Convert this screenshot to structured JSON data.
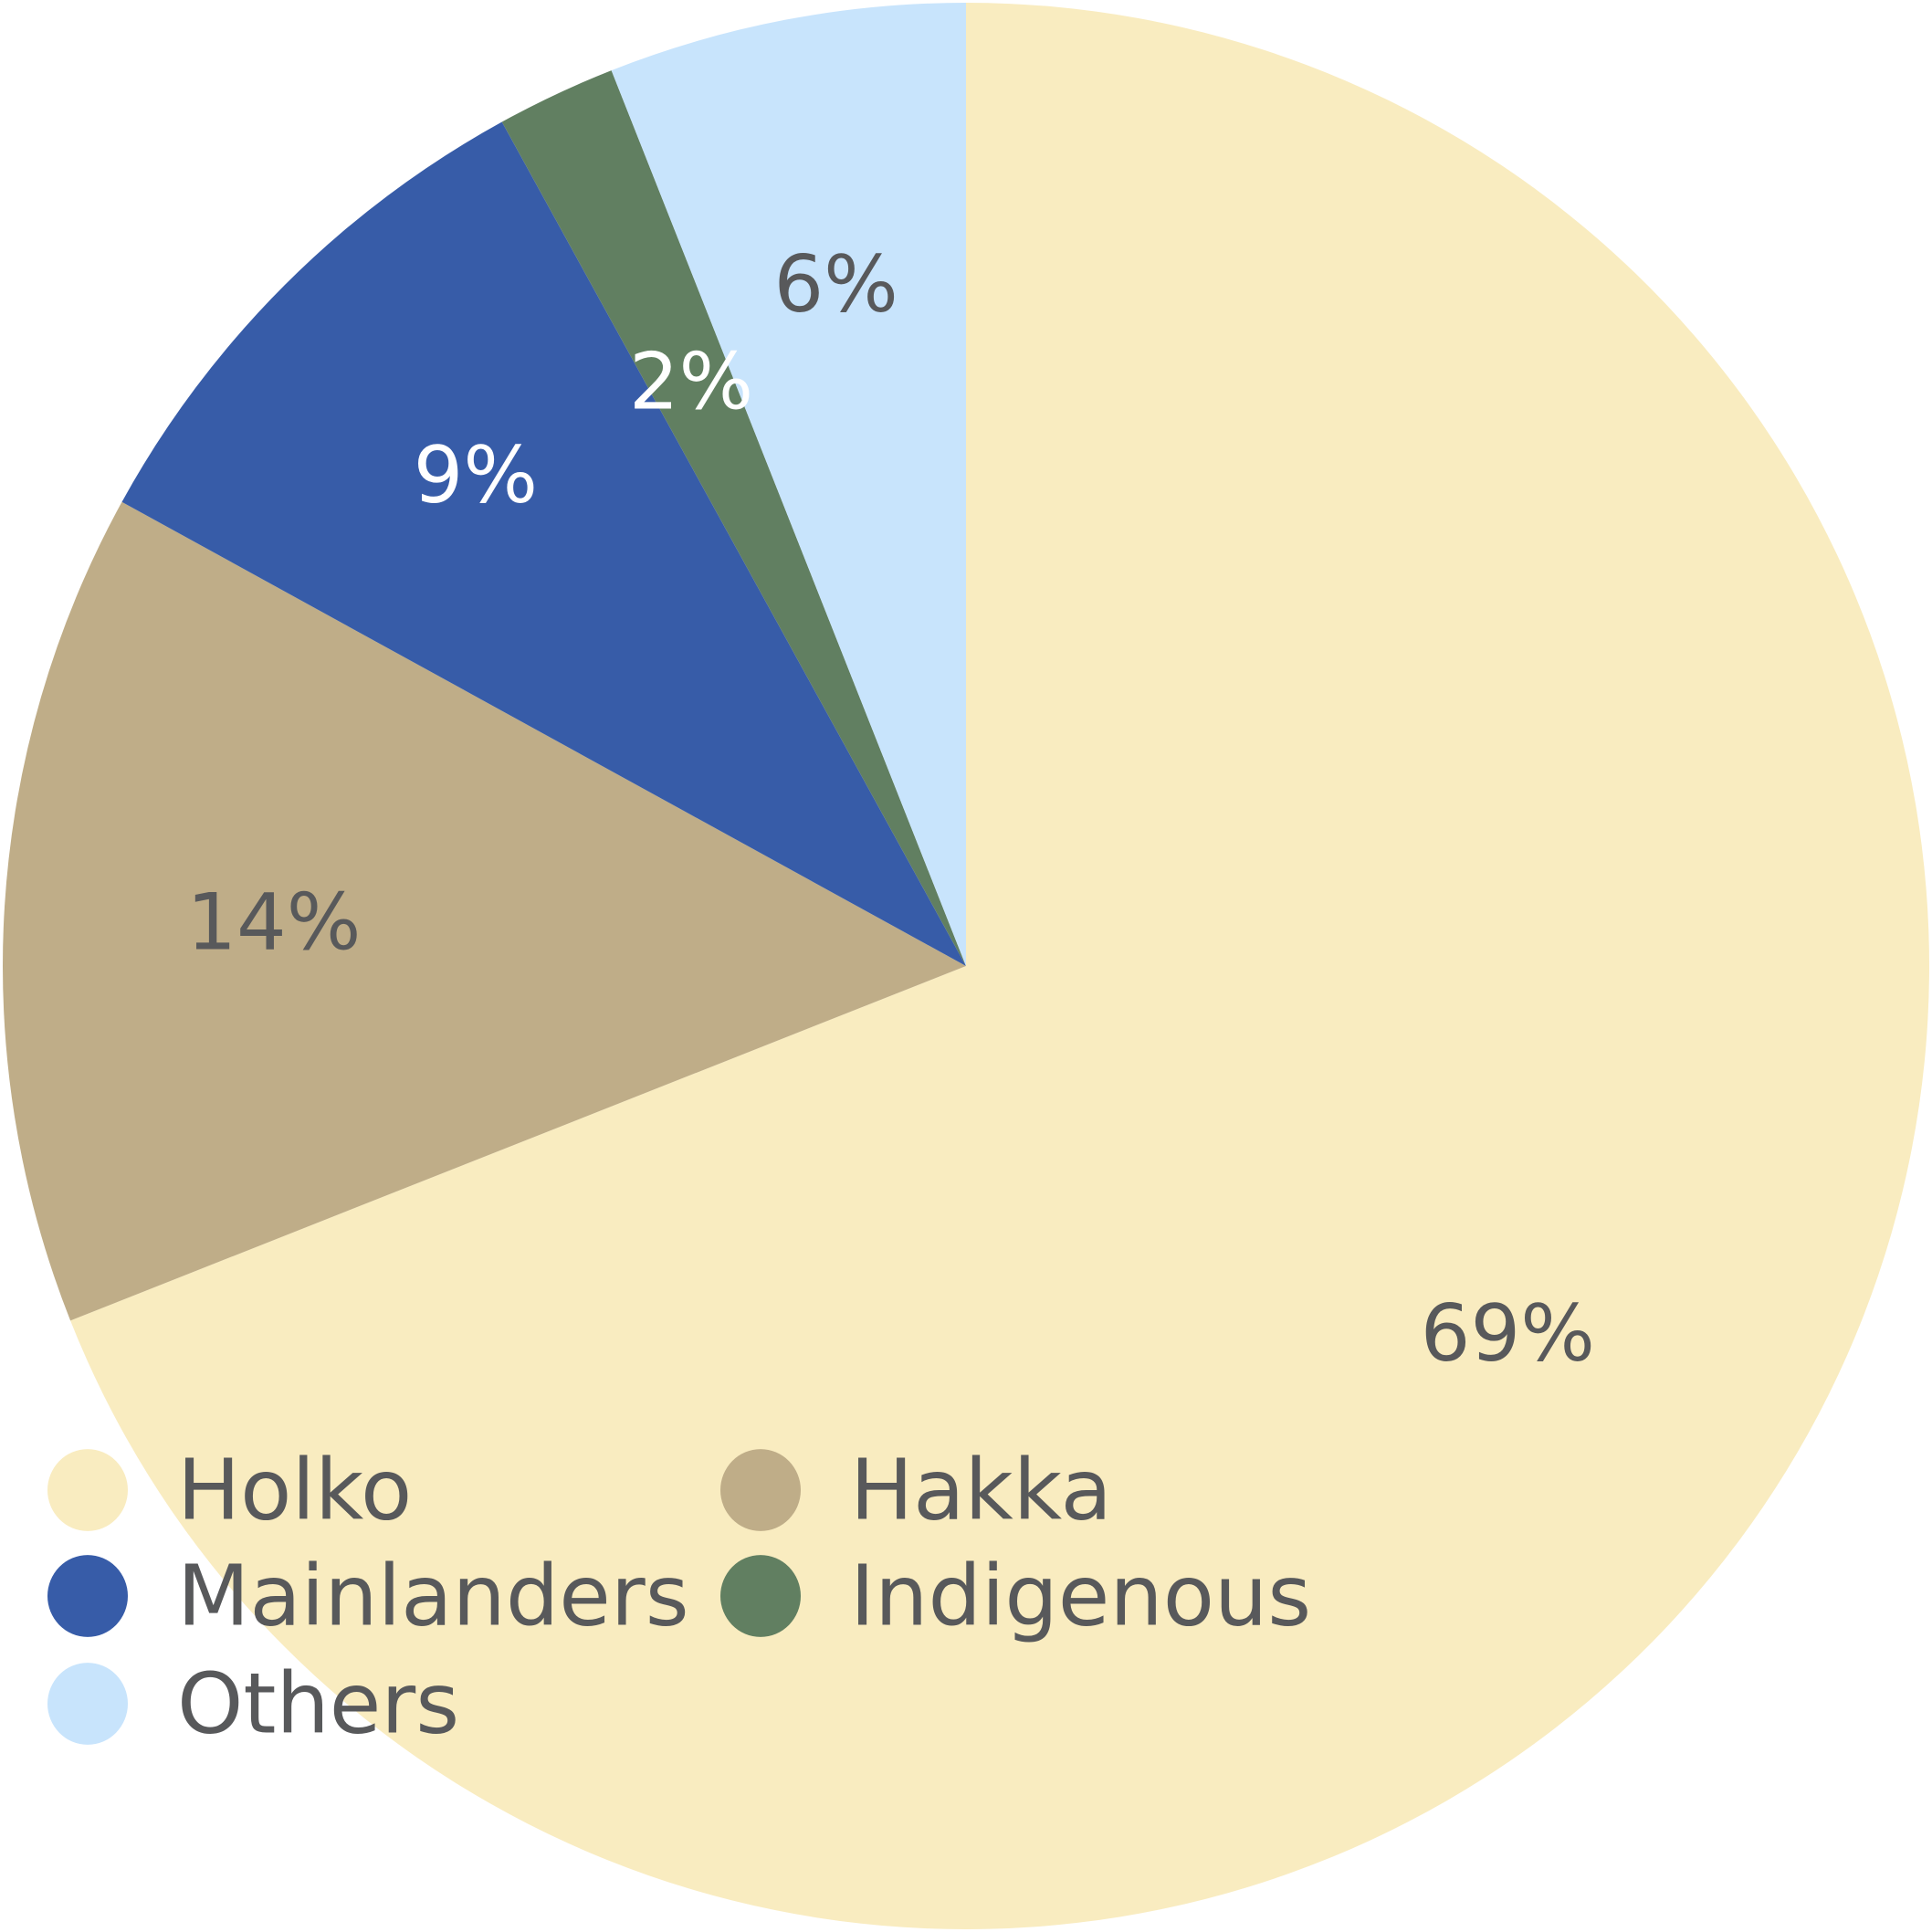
{
  "chart_data": {
    "type": "pie",
    "title": "",
    "start_angle_deg": 0,
    "direction": "clockwise",
    "legend_position": "bottom-left",
    "slices": [
      {
        "name": "Holko",
        "value": 69,
        "label": "69%",
        "color": "#f9ecc0",
        "label_color": "#58595b"
      },
      {
        "name": "Hakka",
        "value": 14,
        "label": "14%",
        "color": "#bfad88",
        "label_color": "#58595b"
      },
      {
        "name": "Mainlanders",
        "value": 9,
        "label": "9%",
        "color": "#375ca8",
        "label_color": "#ffffff"
      },
      {
        "name": "Indigenous",
        "value": 2,
        "label": "2%",
        "color": "#617f61",
        "label_color": "#ffffff"
      },
      {
        "name": "Others",
        "value": 6,
        "label": "6%",
        "color": "#c8e4fc",
        "label_color": "#58595b"
      }
    ],
    "legend_order": [
      "Holko",
      "Hakka",
      "Mainlanders",
      "Indigenous",
      "Others"
    ]
  }
}
